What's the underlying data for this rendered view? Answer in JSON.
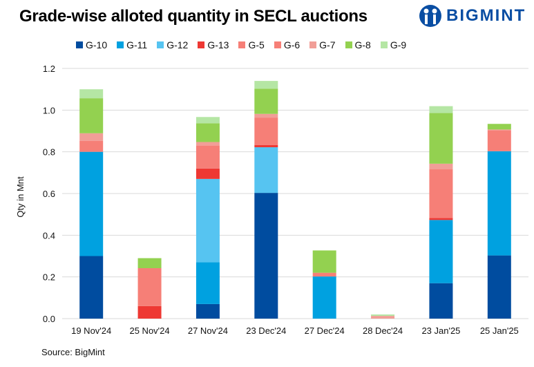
{
  "chart_data": {
    "type": "bar",
    "stacked": true,
    "title": "Grade-wise alloted quantity in SECL auctions",
    "ylabel": "Qty in Mnt",
    "xlabel": "",
    "ylim": [
      0,
      1.2
    ],
    "yticks": [
      "0.0",
      "0.2",
      "0.4",
      "0.6",
      "0.8",
      "1.0",
      "1.2"
    ],
    "grid": true,
    "legend_position": "top",
    "categories": [
      "19 Nov'24",
      "25 Nov'24",
      "27 Nov'24",
      "23 Dec'24",
      "27 Dec'24",
      "28 Dec'24",
      "23 Jan'25",
      "25 Jan'25"
    ],
    "series": [
      {
        "name": "G-10",
        "color": "#004c9f",
        "values": [
          0.3,
          0,
          0.07,
          0.603,
          0,
          0,
          0.17,
          0.303
        ]
      },
      {
        "name": "G-11",
        "color": "#00a1e0",
        "values": [
          0.5,
          0,
          0.2,
          0,
          0.202,
          0,
          0.303,
          0.5
        ]
      },
      {
        "name": "G-12",
        "color": "#56c4f1",
        "values": [
          0,
          0,
          0.4,
          0.219,
          0,
          0,
          0,
          0
        ]
      },
      {
        "name": "G-13",
        "color": "#ee3833",
        "values": [
          0,
          0.06,
          0.05,
          0.011,
          0,
          0,
          0.01,
          0
        ]
      },
      {
        "name": "G-5",
        "color": "#f67f77",
        "values": [
          0,
          0,
          0,
          0,
          0,
          0,
          0,
          0
        ]
      },
      {
        "name": "G-6",
        "color": "#f67f77",
        "values": [
          0.053,
          0.182,
          0.11,
          0.13,
          0.018,
          0,
          0.233,
          0.1
        ]
      },
      {
        "name": "G-7",
        "color": "#f19e97",
        "values": [
          0.036,
          0,
          0.017,
          0.019,
          0,
          0.013,
          0.027,
          0.004
        ]
      },
      {
        "name": "G-8",
        "color": "#93d150",
        "values": [
          0.168,
          0.048,
          0.09,
          0.121,
          0.107,
          0,
          0.243,
          0.027
        ]
      },
      {
        "name": "G-9",
        "color": "#b5e6a4",
        "values": [
          0.043,
          0,
          0.03,
          0.037,
          0,
          0.007,
          0.033,
          0
        ]
      }
    ]
  },
  "logo": {
    "text": "BIGMINT",
    "color": "#0a4ea3"
  },
  "source": "Source: BigMint"
}
